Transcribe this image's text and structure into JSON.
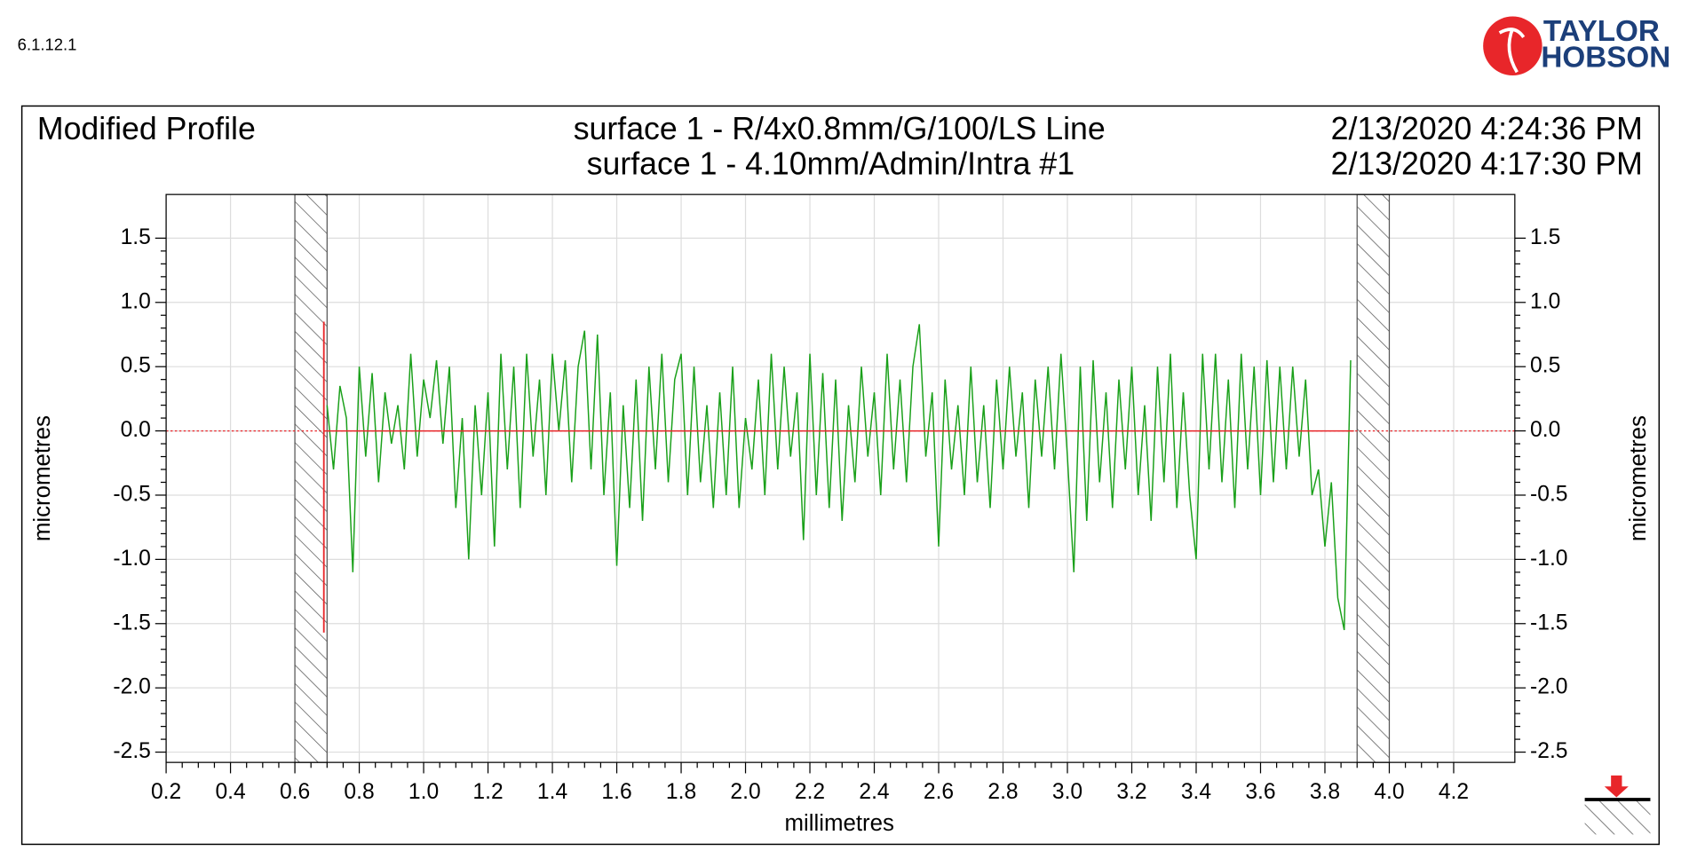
{
  "version": "6.1.12.1",
  "logo": {
    "line1": "TAYLOR",
    "line2": "HOBSON"
  },
  "chart_data": {
    "type": "line",
    "title": "Modified Profile",
    "subtitle": [
      "surface 1 - R/4x0.8mm/G/100/LS Line",
      "surface 1 - 4.10mm/Admin/Intra #1"
    ],
    "dates": [
      "2/13/2020 4:24:36 PM",
      "2/13/2020 4:17:30 PM"
    ],
    "x_label": "millimetres",
    "y_label": "micrometres",
    "color": "#1aa01a",
    "xlim": [
      0.2,
      4.39
    ],
    "ylim": [
      -2.58,
      1.84
    ],
    "xticks": [
      0.2,
      0.4,
      0.6,
      0.8,
      {
        "value": 1,
        "label": "1.0"
      },
      1.2,
      1.4,
      1.6,
      1.8,
      {
        "value": 2,
        "label": "2.0"
      },
      2.2,
      2.4,
      2.6,
      2.8,
      {
        "value": 3,
        "label": "3.0"
      },
      3.2,
      3.4,
      3.6,
      3.8,
      {
        "value": 4,
        "label": "4.0"
      },
      4.2
    ],
    "yticks": [
      1.5,
      {
        "value": 1,
        "label": "1.0"
      },
      0.5,
      {
        "value": 0,
        "label": "0.0"
      },
      -0.5,
      {
        "value": -1,
        "label": "-1.0"
      },
      -1.5,
      {
        "value": -2,
        "label": "-2.0"
      },
      -2.5
    ],
    "grid": true,
    "excluded_regions": [
      [
        0.6,
        0.7
      ],
      [
        3.9,
        4.0
      ]
    ],
    "marker": {
      "x": 0.69,
      "y": [
        0.85,
        -1.57
      ]
    },
    "mean_line": {
      "y": 0,
      "x": [
        0.69,
        3.89
      ]
    },
    "x": [
      0.7,
      0.72,
      0.74,
      0.76,
      0.78,
      0.8,
      0.82,
      0.84,
      0.86,
      0.88,
      0.9,
      0.92,
      0.94,
      0.96,
      0.98,
      1.0,
      1.02,
      1.04,
      1.06,
      1.08,
      1.1,
      1.12,
      1.14,
      1.16,
      1.18,
      1.2,
      1.22,
      1.24,
      1.26,
      1.28,
      1.3,
      1.32,
      1.34,
      1.36,
      1.38,
      1.4,
      1.42,
      1.44,
      1.46,
      1.48,
      1.5,
      1.52,
      1.54,
      1.56,
      1.58,
      1.6,
      1.62,
      1.64,
      1.66,
      1.68,
      1.7,
      1.72,
      1.74,
      1.76,
      1.78,
      1.8,
      1.82,
      1.84,
      1.86,
      1.88,
      1.9,
      1.92,
      1.94,
      1.96,
      1.98,
      2.0,
      2.02,
      2.04,
      2.06,
      2.08,
      2.1,
      2.12,
      2.14,
      2.16,
      2.18,
      2.2,
      2.22,
      2.24,
      2.26,
      2.28,
      2.3,
      2.32,
      2.34,
      2.36,
      2.38,
      2.4,
      2.42,
      2.44,
      2.46,
      2.48,
      2.5,
      2.52,
      2.54,
      2.56,
      2.58,
      2.6,
      2.62,
      2.64,
      2.66,
      2.68,
      2.7,
      2.72,
      2.74,
      2.76,
      2.78,
      2.8,
      2.82,
      2.84,
      2.86,
      2.88,
      2.9,
      2.92,
      2.94,
      2.96,
      2.98,
      3.0,
      3.02,
      3.04,
      3.06,
      3.08,
      3.1,
      3.12,
      3.14,
      3.16,
      3.18,
      3.2,
      3.22,
      3.24,
      3.26,
      3.28,
      3.3,
      3.32,
      3.34,
      3.36,
      3.38,
      3.4,
      3.42,
      3.44,
      3.46,
      3.48,
      3.5,
      3.52,
      3.54,
      3.56,
      3.58,
      3.6,
      3.62,
      3.64,
      3.66,
      3.68,
      3.7,
      3.72,
      3.74,
      3.76,
      3.78,
      3.8,
      3.82,
      3.84,
      3.86,
      3.88
    ],
    "values": [
      0.2,
      -0.3,
      0.35,
      0.1,
      -1.1,
      0.5,
      -0.2,
      0.45,
      -0.4,
      0.3,
      -0.1,
      0.2,
      -0.3,
      0.6,
      -0.2,
      0.4,
      0.1,
      0.55,
      -0.1,
      0.5,
      -0.6,
      0.1,
      -1.0,
      0.2,
      -0.5,
      0.3,
      -0.9,
      0.6,
      -0.3,
      0.5,
      -0.6,
      0.6,
      -0.2,
      0.4,
      -0.5,
      0.6,
      0.0,
      0.55,
      -0.4,
      0.5,
      0.78,
      -0.3,
      0.75,
      -0.5,
      0.3,
      -1.05,
      0.2,
      -0.6,
      0.4,
      -0.7,
      0.5,
      -0.3,
      0.6,
      -0.4,
      0.4,
      0.6,
      -0.5,
      0.5,
      -0.4,
      0.2,
      -0.6,
      0.3,
      -0.5,
      0.5,
      -0.6,
      0.1,
      -0.3,
      0.4,
      -0.5,
      0.6,
      -0.3,
      0.5,
      -0.2,
      0.3,
      -0.85,
      0.6,
      -0.5,
      0.45,
      -0.6,
      0.4,
      -0.7,
      0.2,
      -0.4,
      0.5,
      -0.2,
      0.3,
      -0.5,
      0.6,
      -0.3,
      0.4,
      -0.4,
      0.5,
      0.83,
      -0.2,
      0.3,
      -0.9,
      0.4,
      -0.3,
      0.2,
      -0.5,
      0.5,
      -0.4,
      0.2,
      -0.6,
      0.4,
      -0.3,
      0.5,
      -0.2,
      0.3,
      -0.6,
      0.4,
      -0.2,
      0.5,
      -0.3,
      0.6,
      -0.2,
      -1.1,
      0.5,
      -0.7,
      0.55,
      -0.4,
      0.3,
      -0.6,
      0.4,
      -0.3,
      0.5,
      -0.5,
      0.2,
      -0.7,
      0.5,
      -0.4,
      0.6,
      -0.6,
      0.3,
      -0.5,
      -1.0,
      0.6,
      -0.3,
      0.6,
      -0.4,
      0.4,
      -0.6,
      0.6,
      -0.3,
      0.5,
      -0.5,
      0.55,
      -0.4,
      0.5,
      -0.3,
      0.5,
      -0.2,
      0.4,
      -0.5,
      -0.3,
      -0.9,
      -0.4,
      -1.3,
      -1.55,
      0.55
    ]
  }
}
